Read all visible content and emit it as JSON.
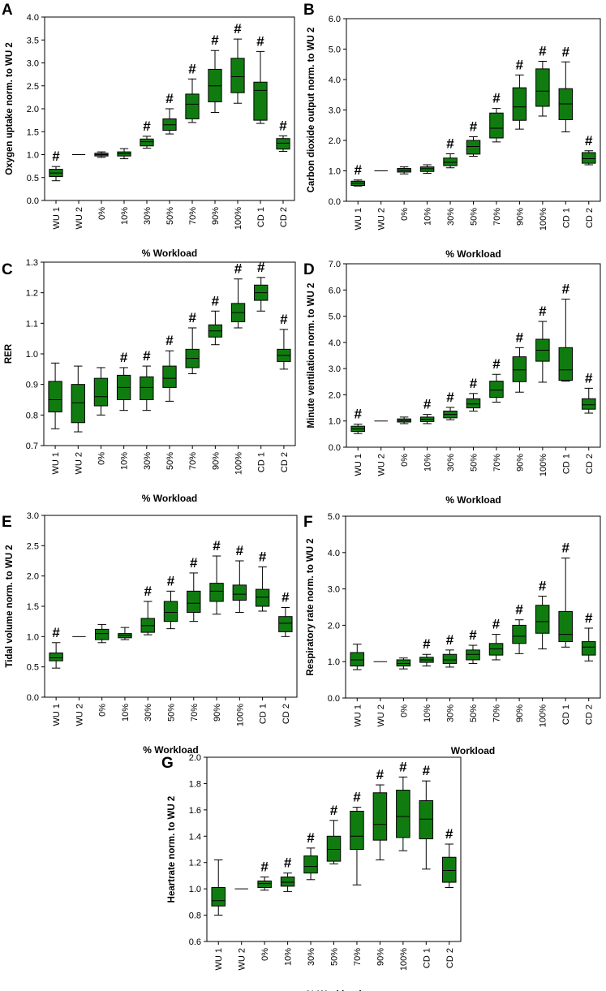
{
  "colors": {
    "box_fill": "#107C10",
    "box_stroke": "#000000",
    "axis": "#000000",
    "text": "#000000"
  },
  "categories": [
    "WU 1",
    "WU 2",
    "0%",
    "10%",
    "30%",
    "50%",
    "70%",
    "90%",
    "100%",
    "CD 1",
    "CD 2"
  ],
  "sig_symbol": "#",
  "chart_data": [
    {
      "type": "box",
      "panel": "A",
      "title": "",
      "xlabel": "% Workload",
      "ylabel": "Oxygen uptake norm. to WU 2",
      "ylim": [
        0,
        4.0
      ],
      "yticks": [
        "0.0",
        "0.5",
        "1.0",
        "1.5",
        "2.0",
        "2.5",
        "3.0",
        "3.5",
        "4.0"
      ],
      "categories": [
        "WU 1",
        "WU 2",
        "0%",
        "10%",
        "30%",
        "50%",
        "70%",
        "90%",
        "100%",
        "CD 1",
        "CD 2"
      ],
      "boxes": [
        {
          "min": 0.43,
          "q1": 0.52,
          "median": 0.6,
          "q3": 0.68,
          "max": 0.74
        },
        {
          "min": 1.0,
          "q1": 1.0,
          "median": 1.0,
          "q3": 1.0,
          "max": 1.0
        },
        {
          "min": 0.94,
          "q1": 0.97,
          "median": 1.0,
          "q3": 1.03,
          "max": 1.06
        },
        {
          "min": 0.91,
          "q1": 0.97,
          "median": 1.02,
          "q3": 1.06,
          "max": 1.13
        },
        {
          "min": 1.14,
          "q1": 1.19,
          "median": 1.28,
          "q3": 1.34,
          "max": 1.4
        },
        {
          "min": 1.45,
          "q1": 1.53,
          "median": 1.65,
          "q3": 1.78,
          "max": 2.0
        },
        {
          "min": 1.7,
          "q1": 1.78,
          "median": 2.1,
          "q3": 2.32,
          "max": 2.65
        },
        {
          "min": 1.92,
          "q1": 2.15,
          "median": 2.5,
          "q3": 2.86,
          "max": 3.27
        },
        {
          "min": 2.12,
          "q1": 2.35,
          "median": 2.7,
          "q3": 3.1,
          "max": 3.52
        },
        {
          "min": 1.68,
          "q1": 1.75,
          "median": 2.4,
          "q3": 2.58,
          "max": 3.25
        },
        {
          "min": 1.07,
          "q1": 1.12,
          "median": 1.25,
          "q3": 1.35,
          "max": 1.41
        }
      ],
      "significant": [
        true,
        false,
        false,
        false,
        true,
        true,
        true,
        true,
        true,
        true,
        true
      ]
    },
    {
      "type": "box",
      "panel": "B",
      "title": "",
      "xlabel": "% Workload",
      "ylabel": "Carbon dioxide output norm. to WU 2",
      "ylim": [
        0,
        6.0
      ],
      "yticks": [
        "0.0",
        "1.0",
        "2.0",
        "3.0",
        "4.0",
        "5.0",
        "6.0"
      ],
      "categories": [
        "WU 1",
        "WU 2",
        "0%",
        "10%",
        "30%",
        "50%",
        "70%",
        "90%",
        "100%",
        "CD 1",
        "CD 2"
      ],
      "boxes": [
        {
          "min": 0.5,
          "q1": 0.52,
          "median": 0.59,
          "q3": 0.66,
          "max": 0.7
        },
        {
          "min": 1.0,
          "q1": 1.0,
          "median": 1.0,
          "q3": 1.0,
          "max": 1.0
        },
        {
          "min": 0.9,
          "q1": 0.96,
          "median": 1.02,
          "q3": 1.08,
          "max": 1.13
        },
        {
          "min": 0.92,
          "q1": 0.98,
          "median": 1.07,
          "q3": 1.13,
          "max": 1.2
        },
        {
          "min": 1.1,
          "q1": 1.17,
          "median": 1.28,
          "q3": 1.42,
          "max": 1.56
        },
        {
          "min": 1.48,
          "q1": 1.55,
          "median": 1.8,
          "q3": 2.0,
          "max": 2.12
        },
        {
          "min": 1.95,
          "q1": 2.08,
          "median": 2.4,
          "q3": 2.9,
          "max": 3.05
        },
        {
          "min": 2.37,
          "q1": 2.66,
          "median": 3.1,
          "q3": 3.73,
          "max": 4.15
        },
        {
          "min": 2.8,
          "q1": 3.12,
          "median": 3.62,
          "q3": 4.35,
          "max": 4.6
        },
        {
          "min": 2.28,
          "q1": 2.68,
          "median": 3.2,
          "q3": 3.7,
          "max": 4.58
        },
        {
          "min": 1.2,
          "q1": 1.25,
          "median": 1.4,
          "q3": 1.6,
          "max": 1.66
        }
      ],
      "significant": [
        true,
        false,
        false,
        false,
        true,
        true,
        true,
        true,
        true,
        true,
        true
      ]
    },
    {
      "type": "box",
      "panel": "C",
      "title": "",
      "xlabel": "% Workload",
      "ylabel": "RER",
      "ylim": [
        0.7,
        1.3
      ],
      "yticks": [
        "0.7",
        "0.8",
        "0.9",
        "1.0",
        "1.1",
        "1.2",
        "1.3"
      ],
      "categories": [
        "WU 1",
        "WU 2",
        "0%",
        "10%",
        "30%",
        "50%",
        "70%",
        "90%",
        "100%",
        "CD 1",
        "CD 2"
      ],
      "boxes": [
        {
          "min": 0.755,
          "q1": 0.81,
          "median": 0.85,
          "q3": 0.91,
          "max": 0.97
        },
        {
          "min": 0.745,
          "q1": 0.775,
          "median": 0.84,
          "q3": 0.9,
          "max": 0.96
        },
        {
          "min": 0.8,
          "q1": 0.83,
          "median": 0.86,
          "q3": 0.92,
          "max": 0.955
        },
        {
          "min": 0.815,
          "q1": 0.85,
          "median": 0.89,
          "q3": 0.93,
          "max": 0.955
        },
        {
          "min": 0.815,
          "q1": 0.85,
          "median": 0.89,
          "q3": 0.925,
          "max": 0.96
        },
        {
          "min": 0.845,
          "q1": 0.89,
          "median": 0.92,
          "q3": 0.96,
          "max": 1.01
        },
        {
          "min": 0.935,
          "q1": 0.955,
          "median": 0.985,
          "q3": 1.015,
          "max": 1.085
        },
        {
          "min": 1.03,
          "q1": 1.055,
          "median": 1.075,
          "q3": 1.095,
          "max": 1.14
        },
        {
          "min": 1.085,
          "q1": 1.105,
          "median": 1.135,
          "q3": 1.165,
          "max": 1.245
        },
        {
          "min": 1.14,
          "q1": 1.175,
          "median": 1.2,
          "q3": 1.225,
          "max": 1.25
        },
        {
          "min": 0.95,
          "q1": 0.975,
          "median": 0.995,
          "q3": 1.015,
          "max": 1.08
        }
      ],
      "significant": [
        false,
        false,
        false,
        true,
        true,
        true,
        true,
        true,
        true,
        true,
        true
      ]
    },
    {
      "type": "box",
      "panel": "D",
      "title": "",
      "xlabel": "% Workload",
      "ylabel": "Minute ventilation norm. to WU 2",
      "ylim": [
        0,
        7.0
      ],
      "yticks": [
        "0.0",
        "1.0",
        "2.0",
        "3.0",
        "4.0",
        "5.0",
        "6.0",
        "7.0"
      ],
      "categories": [
        "WU 1",
        "WU 2",
        "0%",
        "10%",
        "30%",
        "50%",
        "70%",
        "90%",
        "100%",
        "CD 1",
        "CD 2"
      ],
      "boxes": [
        {
          "min": 0.52,
          "q1": 0.6,
          "median": 0.7,
          "q3": 0.8,
          "max": 0.88
        },
        {
          "min": 1.0,
          "q1": 1.0,
          "median": 1.0,
          "q3": 1.0,
          "max": 1.0
        },
        {
          "min": 0.9,
          "q1": 0.96,
          "median": 1.02,
          "q3": 1.08,
          "max": 1.15
        },
        {
          "min": 0.9,
          "q1": 0.98,
          "median": 1.07,
          "q3": 1.15,
          "max": 1.25
        },
        {
          "min": 1.05,
          "q1": 1.12,
          "median": 1.25,
          "q3": 1.38,
          "max": 1.52
        },
        {
          "min": 1.38,
          "q1": 1.5,
          "median": 1.65,
          "q3": 1.85,
          "max": 2.05
        },
        {
          "min": 1.72,
          "q1": 1.9,
          "median": 2.18,
          "q3": 2.52,
          "max": 2.78
        },
        {
          "min": 2.1,
          "q1": 2.5,
          "median": 2.95,
          "q3": 3.45,
          "max": 3.8
        },
        {
          "min": 2.48,
          "q1": 3.28,
          "median": 3.7,
          "q3": 4.12,
          "max": 4.8
        },
        {
          "min": 2.52,
          "q1": 2.55,
          "median": 2.95,
          "q3": 3.8,
          "max": 5.65
        },
        {
          "min": 1.3,
          "q1": 1.45,
          "median": 1.62,
          "q3": 1.85,
          "max": 2.25
        }
      ],
      "significant": [
        true,
        false,
        false,
        true,
        true,
        true,
        true,
        true,
        true,
        true,
        true
      ]
    },
    {
      "type": "box",
      "panel": "E",
      "title": "",
      "xlabel": "% Workload",
      "ylabel": "Tidal volume norm. to WU 2",
      "ylim": [
        0,
        3.0
      ],
      "yticks": [
        "0.0",
        "0.5",
        "1.0",
        "1.5",
        "2.0",
        "2.5",
        "3.0"
      ],
      "categories": [
        "WU 1",
        "WU 2",
        "0%",
        "10%",
        "30%",
        "50%",
        "70%",
        "90%",
        "100%",
        "CD 1",
        "CD 2"
      ],
      "boxes": [
        {
          "min": 0.48,
          "q1": 0.6,
          "median": 0.65,
          "q3": 0.73,
          "max": 0.9
        },
        {
          "min": 1.0,
          "q1": 1.0,
          "median": 1.0,
          "q3": 1.0,
          "max": 1.0
        },
        {
          "min": 0.9,
          "q1": 0.95,
          "median": 1.05,
          "q3": 1.12,
          "max": 1.2
        },
        {
          "min": 0.95,
          "q1": 0.98,
          "median": 1.02,
          "q3": 1.05,
          "max": 1.15
        },
        {
          "min": 1.03,
          "q1": 1.07,
          "median": 1.18,
          "q3": 1.3,
          "max": 1.58
        },
        {
          "min": 1.13,
          "q1": 1.25,
          "median": 1.4,
          "q3": 1.58,
          "max": 1.75
        },
        {
          "min": 1.25,
          "q1": 1.4,
          "median": 1.55,
          "q3": 1.75,
          "max": 2.05
        },
        {
          "min": 1.37,
          "q1": 1.58,
          "median": 1.75,
          "q3": 1.88,
          "max": 2.33
        },
        {
          "min": 1.4,
          "q1": 1.6,
          "median": 1.7,
          "q3": 1.85,
          "max": 2.25
        },
        {
          "min": 1.42,
          "q1": 1.5,
          "median": 1.65,
          "q3": 1.78,
          "max": 2.15
        },
        {
          "min": 1.0,
          "q1": 1.08,
          "median": 1.22,
          "q3": 1.33,
          "max": 1.48
        }
      ],
      "significant": [
        true,
        false,
        false,
        false,
        true,
        true,
        true,
        true,
        true,
        true,
        true
      ]
    },
    {
      "type": "box",
      "panel": "F",
      "title": "",
      "xlabel": "Workload",
      "ylabel": "Respiratory rate norm. to WU 2",
      "ylim": [
        0,
        5.0
      ],
      "yticks": [
        "0.0",
        "1.0",
        "2.0",
        "3.0",
        "4.0",
        "5.0"
      ],
      "categories": [
        "WU 1",
        "WU 2",
        "0%",
        "10%",
        "30%",
        "50%",
        "70%",
        "90%",
        "100%",
        "CD 1",
        "CD 2"
      ],
      "boxes": [
        {
          "min": 0.78,
          "q1": 0.88,
          "median": 1.05,
          "q3": 1.25,
          "max": 1.48
        },
        {
          "min": 1.0,
          "q1": 1.0,
          "median": 1.0,
          "q3": 1.0,
          "max": 1.0
        },
        {
          "min": 0.8,
          "q1": 0.88,
          "median": 0.95,
          "q3": 1.05,
          "max": 1.1
        },
        {
          "min": 0.88,
          "q1": 0.98,
          "median": 1.05,
          "q3": 1.12,
          "max": 1.2
        },
        {
          "min": 0.85,
          "q1": 0.95,
          "median": 1.05,
          "q3": 1.2,
          "max": 1.32
        },
        {
          "min": 0.95,
          "q1": 1.05,
          "median": 1.2,
          "q3": 1.32,
          "max": 1.45
        },
        {
          "min": 1.05,
          "q1": 1.18,
          "median": 1.35,
          "q3": 1.5,
          "max": 1.75
        },
        {
          "min": 1.22,
          "q1": 1.5,
          "median": 1.7,
          "q3": 2.0,
          "max": 2.15
        },
        {
          "min": 1.35,
          "q1": 1.78,
          "median": 2.1,
          "q3": 2.55,
          "max": 2.8
        },
        {
          "min": 1.4,
          "q1": 1.55,
          "median": 1.75,
          "q3": 2.38,
          "max": 3.85
        },
        {
          "min": 1.02,
          "q1": 1.18,
          "median": 1.4,
          "q3": 1.55,
          "max": 1.92
        }
      ],
      "significant": [
        false,
        false,
        false,
        true,
        true,
        true,
        true,
        true,
        true,
        true,
        true
      ]
    },
    {
      "type": "box",
      "panel": "G",
      "title": "",
      "xlabel": "% Workload",
      "ylabel": "Heartrate norm. to WU 2",
      "ylim": [
        0.6,
        2.0
      ],
      "yticks": [
        "0.6",
        "0.8",
        "1.0",
        "1.2",
        "1.4",
        "1.6",
        "1.8",
        "2.0"
      ],
      "categories": [
        "WU 1",
        "WU 2",
        "0%",
        "10%",
        "30%",
        "50%",
        "70%",
        "90%",
        "100%",
        "CD 1",
        "CD 2"
      ],
      "boxes": [
        {
          "min": 0.8,
          "q1": 0.87,
          "median": 0.91,
          "q3": 1.01,
          "max": 1.22
        },
        {
          "min": 1.0,
          "q1": 1.0,
          "median": 1.0,
          "q3": 1.0,
          "max": 1.0
        },
        {
          "min": 0.99,
          "q1": 1.01,
          "median": 1.04,
          "q3": 1.06,
          "max": 1.09
        },
        {
          "min": 0.98,
          "q1": 1.02,
          "median": 1.05,
          "q3": 1.09,
          "max": 1.12
        },
        {
          "min": 1.07,
          "q1": 1.12,
          "median": 1.17,
          "q3": 1.25,
          "max": 1.31
        },
        {
          "min": 1.19,
          "q1": 1.21,
          "median": 1.3,
          "q3": 1.4,
          "max": 1.52
        },
        {
          "min": 1.03,
          "q1": 1.3,
          "median": 1.4,
          "q3": 1.59,
          "max": 1.62
        },
        {
          "min": 1.22,
          "q1": 1.37,
          "median": 1.49,
          "q3": 1.73,
          "max": 1.79
        },
        {
          "min": 1.29,
          "q1": 1.39,
          "median": 1.55,
          "q3": 1.75,
          "max": 1.85
        },
        {
          "min": 1.15,
          "q1": 1.38,
          "median": 1.53,
          "q3": 1.67,
          "max": 1.82
        },
        {
          "min": 1.01,
          "q1": 1.05,
          "median": 1.14,
          "q3": 1.24,
          "max": 1.34
        }
      ],
      "significant": [
        false,
        false,
        true,
        true,
        true,
        true,
        true,
        true,
        true,
        true,
        true
      ]
    }
  ]
}
